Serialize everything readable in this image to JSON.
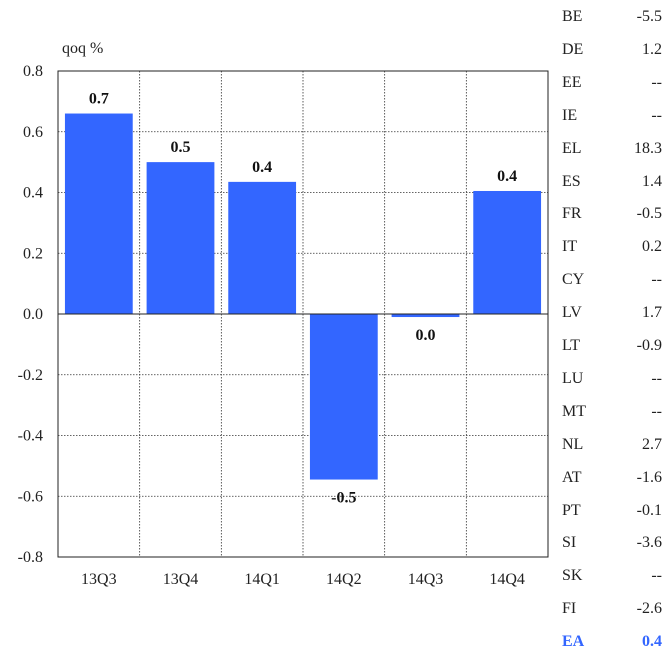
{
  "chart_data": {
    "type": "bar",
    "ylabel": "qoq %",
    "categories": [
      "13Q3",
      "13Q4",
      "14Q1",
      "14Q2",
      "14Q3",
      "14Q4"
    ],
    "values": [
      0.66,
      0.5,
      0.435,
      -0.545,
      -0.01,
      0.405
    ],
    "data_labels": [
      "0.7",
      "0.5",
      "0.4",
      "-0.5",
      "0.0",
      "0.4"
    ],
    "ylim": [
      -0.8,
      0.8
    ],
    "yticks": [
      "0.8",
      "0.6",
      "0.4",
      "0.2",
      "0.0",
      "-0.2",
      "-0.4",
      "-0.6",
      "-0.8"
    ],
    "grid": true,
    "bar_color": "#3366ff"
  },
  "country_table": {
    "rows": [
      {
        "code": "BE",
        "value": "-5.5"
      },
      {
        "code": "DE",
        "value": "1.2"
      },
      {
        "code": "EE",
        "value": "--"
      },
      {
        "code": "IE",
        "value": "--"
      },
      {
        "code": "EL",
        "value": "18.3"
      },
      {
        "code": "ES",
        "value": "1.4"
      },
      {
        "code": "FR",
        "value": "-0.5"
      },
      {
        "code": "IT",
        "value": "0.2"
      },
      {
        "code": "CY",
        "value": "--"
      },
      {
        "code": "LV",
        "value": "1.7"
      },
      {
        "code": "LT",
        "value": "-0.9"
      },
      {
        "code": "LU",
        "value": "--"
      },
      {
        "code": "MT",
        "value": "--"
      },
      {
        "code": "NL",
        "value": "2.7"
      },
      {
        "code": "AT",
        "value": "-1.6"
      },
      {
        "code": "PT",
        "value": "-0.1"
      },
      {
        "code": "SI",
        "value": "-3.6"
      },
      {
        "code": "SK",
        "value": "--"
      },
      {
        "code": "FI",
        "value": "-2.6"
      }
    ],
    "total": {
      "code": "EA",
      "value": "0.4"
    },
    "total_color": "#3366ff"
  }
}
